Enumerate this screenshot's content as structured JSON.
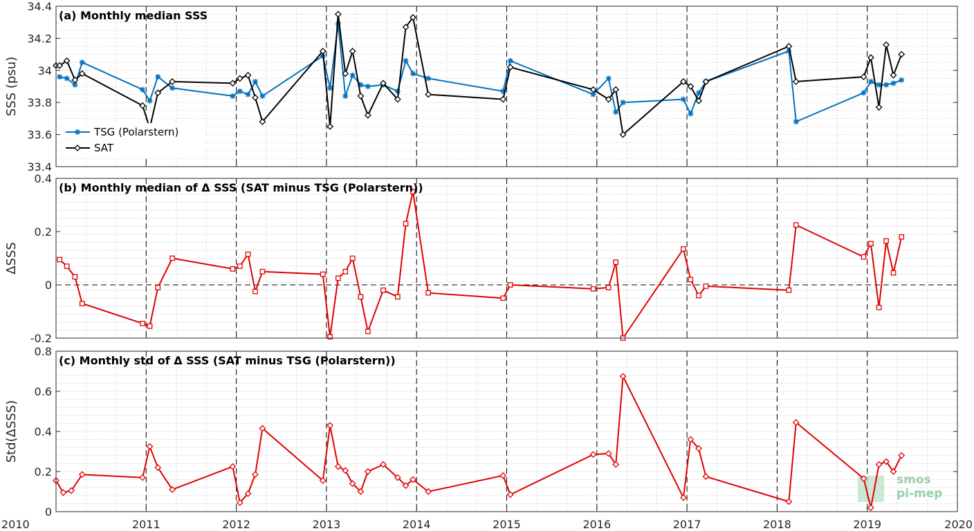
{
  "xaxis": {
    "ticks": [
      "2010",
      "2011",
      "2012",
      "2013",
      "2014",
      "2015",
      "2016",
      "2017",
      "2018",
      "2019",
      "2020"
    ],
    "lim": [
      2010,
      2020
    ]
  },
  "watermark": {
    "line1": "smos",
    "line2": "pi-mep"
  },
  "chart_data": [
    {
      "type": "line",
      "title": "(a) Monthly median SSS",
      "ylabel": "SSS (psu)",
      "ylim": [
        33.4,
        34.4
      ],
      "yticks": [
        "33.4",
        "33.6",
        "33.8",
        "34",
        "34.2",
        "34.4"
      ],
      "legend": "bottom-left",
      "series": [
        {
          "name": "TSG (Polarstern)",
          "color": "#0072BD",
          "marker": "star",
          "x": [
            2010.04,
            2010.12,
            2010.21,
            2010.29,
            2010.96,
            2011.04,
            2011.13,
            2011.29,
            2011.96,
            2012.04,
            2012.13,
            2012.21,
            2012.29,
            2012.96,
            2013.04,
            2013.13,
            2013.21,
            2013.29,
            2013.38,
            2013.46,
            2013.63,
            2013.79,
            2013.88,
            2013.96,
            2014.13,
            2014.96,
            2015.04,
            2015.96,
            2016.13,
            2016.21,
            2016.29,
            2016.96,
            2017.04,
            2017.13,
            2017.21,
            2018.13,
            2018.21,
            2018.96,
            2019.04,
            2019.13,
            2019.21,
            2019.29,
            2019.38
          ],
          "y": [
            33.96,
            33.95,
            33.91,
            34.05,
            33.88,
            33.81,
            33.96,
            33.89,
            33.84,
            33.87,
            33.85,
            33.93,
            33.84,
            34.09,
            33.89,
            34.29,
            33.84,
            33.97,
            33.91,
            33.9,
            33.91,
            33.87,
            34.06,
            33.98,
            33.95,
            33.87,
            34.06,
            33.85,
            33.95,
            33.74,
            33.8,
            33.82,
            33.73,
            33.86,
            33.93,
            34.12,
            33.68,
            33.86,
            33.93,
            33.91,
            33.91,
            33.92,
            33.94
          ]
        },
        {
          "name": "SAT",
          "color": "#000000",
          "marker": "diamond",
          "x": [
            2010.0,
            2010.04,
            2010.12,
            2010.21,
            2010.29,
            2010.96,
            2011.04,
            2011.13,
            2011.29,
            2011.96,
            2012.04,
            2012.13,
            2012.21,
            2012.29,
            2012.96,
            2013.04,
            2013.13,
            2013.21,
            2013.29,
            2013.38,
            2013.46,
            2013.63,
            2013.79,
            2013.88,
            2013.96,
            2014.13,
            2014.96,
            2015.04,
            2015.96,
            2016.13,
            2016.21,
            2016.29,
            2016.96,
            2017.04,
            2017.13,
            2017.21,
            2018.13,
            2018.21,
            2018.96,
            2019.04,
            2019.13,
            2019.21,
            2019.29,
            2019.38
          ],
          "y": [
            34.03,
            34.03,
            34.06,
            33.94,
            33.98,
            33.78,
            33.64,
            33.86,
            33.93,
            33.92,
            33.95,
            33.97,
            33.83,
            33.68,
            34.12,
            33.65,
            34.35,
            33.98,
            34.12,
            33.84,
            33.72,
            33.92,
            33.82,
            34.27,
            34.33,
            33.85,
            33.82,
            34.02,
            33.88,
            33.82,
            33.88,
            33.6,
            33.93,
            33.9,
            33.81,
            33.93,
            34.15,
            33.93,
            33.96,
            34.08,
            33.77,
            34.16,
            33.97,
            34.1
          ]
        }
      ]
    },
    {
      "type": "line",
      "title": "(b) Monthly median of Δ SSS (SAT minus TSG (Polarstern))",
      "ylabel": "ΔSSS",
      "ylim": [
        -0.2,
        0.4
      ],
      "yticks": [
        "-0.2",
        "0",
        "0.2",
        "0.4"
      ],
      "zero_line": true,
      "series": [
        {
          "name": "",
          "color": "#E00000",
          "marker": "square",
          "x": [
            2010.04,
            2010.12,
            2010.21,
            2010.29,
            2010.96,
            2011.04,
            2011.13,
            2011.29,
            2011.96,
            2012.04,
            2012.13,
            2012.21,
            2012.29,
            2012.96,
            2013.04,
            2013.13,
            2013.21,
            2013.29,
            2013.38,
            2013.46,
            2013.63,
            2013.79,
            2013.88,
            2013.96,
            2014.13,
            2014.96,
            2015.04,
            2015.96,
            2016.13,
            2016.21,
            2016.29,
            2016.96,
            2017.04,
            2017.13,
            2017.21,
            2018.13,
            2018.21,
            2018.96,
            2019.04,
            2019.13,
            2019.21,
            2019.29,
            2019.38
          ],
          "y": [
            0.095,
            0.07,
            0.03,
            -0.07,
            -0.145,
            -0.155,
            -0.01,
            0.1,
            0.06,
            0.07,
            0.115,
            -0.025,
            0.05,
            0.04,
            -0.195,
            0.025,
            0.05,
            0.1,
            -0.045,
            -0.175,
            -0.02,
            -0.045,
            0.23,
            0.35,
            -0.03,
            -0.05,
            0.0,
            -0.015,
            -0.01,
            0.085,
            -0.2,
            0.135,
            0.02,
            -0.04,
            -0.005,
            -0.02,
            0.225,
            0.105,
            0.155,
            -0.085,
            0.165,
            0.045,
            0.18
          ]
        }
      ]
    },
    {
      "type": "line",
      "title": "(c) Monthly std of Δ SSS (SAT minus TSG (Polarstern))",
      "ylabel": "Std(ΔSSS)",
      "ylim": [
        0,
        0.8
      ],
      "yticks": [
        "0",
        "0.2",
        "0.4",
        "0.6",
        "0.8"
      ],
      "series": [
        {
          "name": "",
          "color": "#E00000",
          "marker": "diamond",
          "x": [
            2010.0,
            2010.08,
            2010.17,
            2010.29,
            2010.96,
            2011.04,
            2011.13,
            2011.29,
            2011.96,
            2012.04,
            2012.13,
            2012.21,
            2012.29,
            2012.96,
            2013.04,
            2013.13,
            2013.21,
            2013.29,
            2013.38,
            2013.46,
            2013.63,
            2013.79,
            2013.88,
            2013.96,
            2014.13,
            2014.96,
            2015.04,
            2015.96,
            2016.13,
            2016.21,
            2016.29,
            2016.96,
            2017.04,
            2017.13,
            2017.21,
            2018.13,
            2018.21,
            2018.96,
            2019.04,
            2019.13,
            2019.21,
            2019.29,
            2019.38
          ],
          "y": [
            0.155,
            0.095,
            0.105,
            0.185,
            0.17,
            0.325,
            0.22,
            0.11,
            0.225,
            0.045,
            0.09,
            0.185,
            0.415,
            0.155,
            0.43,
            0.225,
            0.205,
            0.14,
            0.1,
            0.2,
            0.235,
            0.17,
            0.13,
            0.16,
            0.1,
            0.18,
            0.085,
            0.285,
            0.29,
            0.235,
            0.675,
            0.07,
            0.36,
            0.315,
            0.175,
            0.05,
            0.445,
            0.165,
            0.02,
            0.235,
            0.25,
            0.2,
            0.28
          ]
        }
      ]
    }
  ]
}
